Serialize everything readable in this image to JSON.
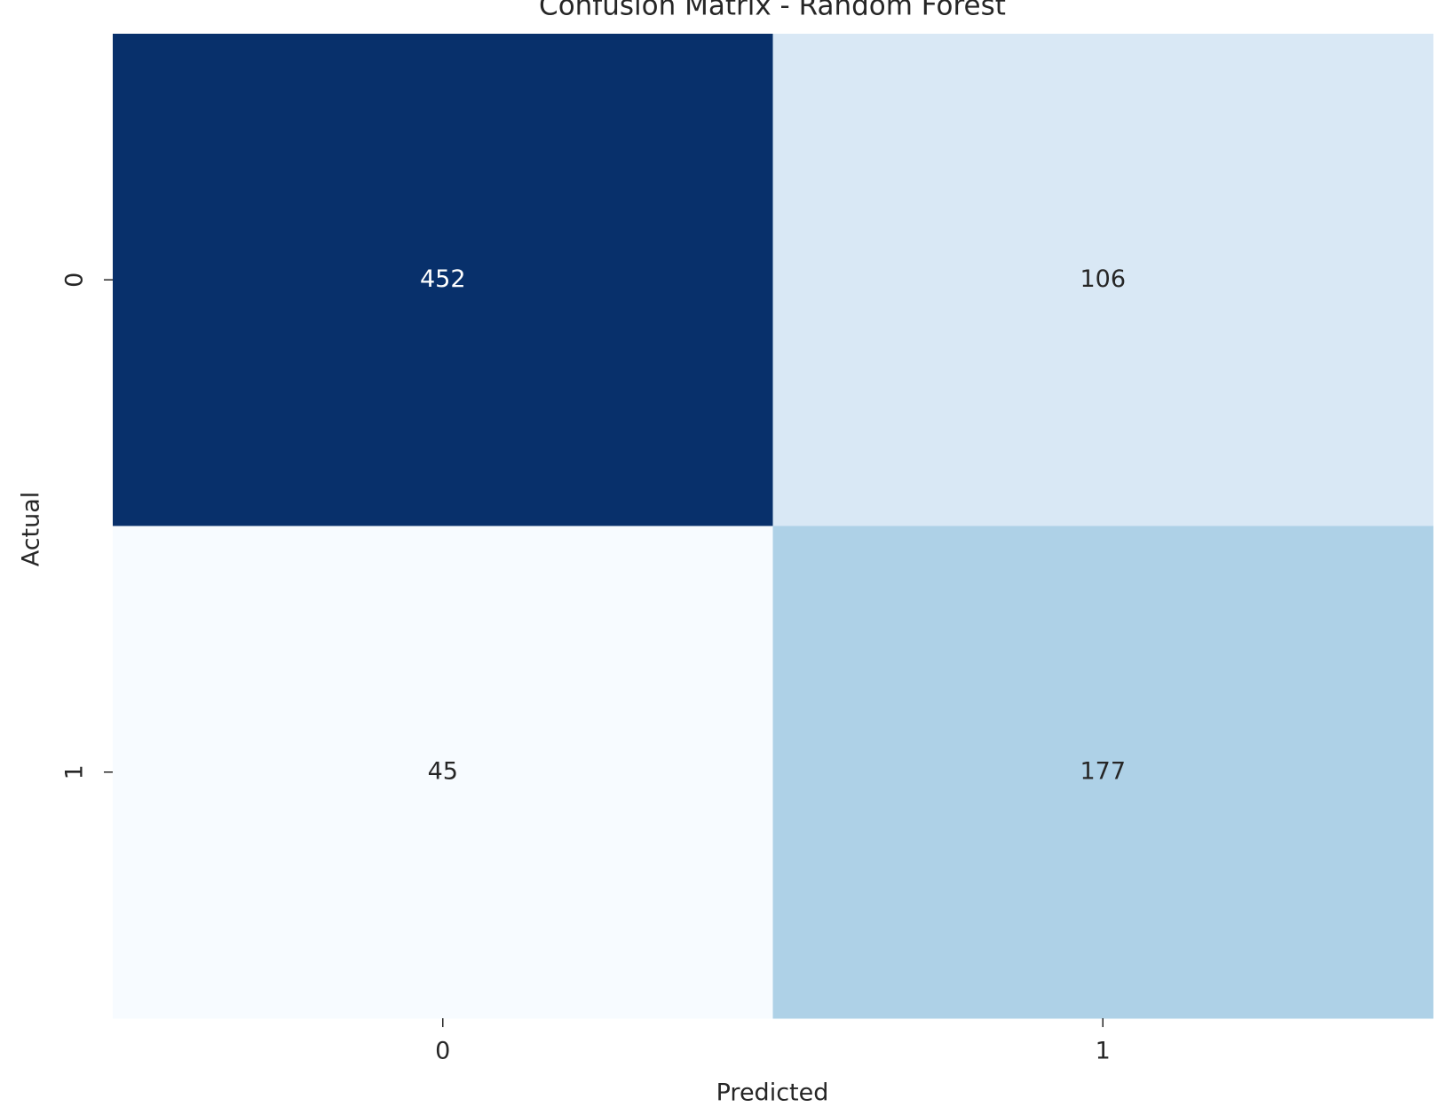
{
  "chart_data": {
    "type": "heatmap",
    "title": "Confusion Matrix - Random Forest",
    "xlabel": "Predicted",
    "ylabel": "Actual",
    "x_categories": [
      "0",
      "1"
    ],
    "y_categories": [
      "0",
      "1"
    ],
    "values": [
      [
        452,
        106
      ],
      [
        45,
        177
      ]
    ],
    "colormap": [
      "#f7fbff",
      "#deebf7",
      "#c6dbef",
      "#9ecae1",
      "#6baed6",
      "#4292c6",
      "#2171b5",
      "#08519c",
      "#08306b"
    ]
  }
}
